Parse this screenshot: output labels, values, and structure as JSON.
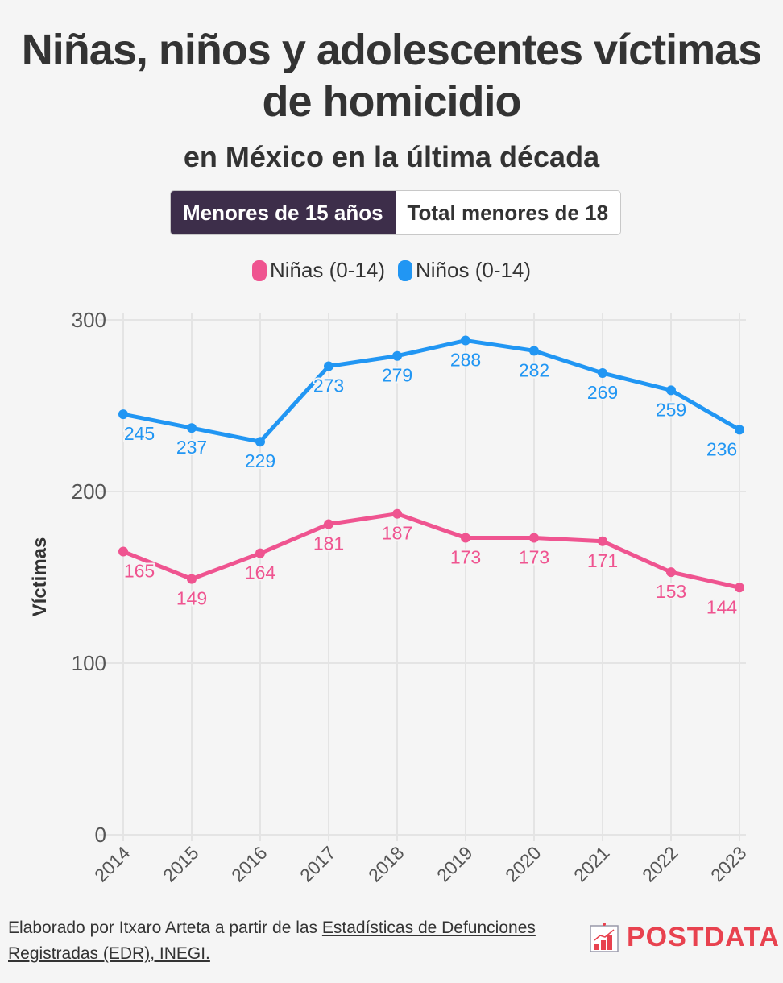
{
  "title": "Niñas, niños y adolescentes víctimas de homicidio",
  "subtitle": "en México en la última década",
  "toggle": {
    "active": "Menores de 15 años",
    "inactive": "Total menores de 18"
  },
  "footer": {
    "prefix": "Elaborado por Itxaro Arteta a partir de las ",
    "link": "Estadísticas de Defunciones Registradas (EDR), INEGI."
  },
  "logo": "POSTDATA",
  "colors": {
    "ninas": "#ef5490",
    "ninos": "#2196f3",
    "toggle_active": "#3d2e4a"
  },
  "chart_data": {
    "type": "line",
    "x": [
      "2014",
      "2015",
      "2016",
      "2017",
      "2018",
      "2019",
      "2020",
      "2021",
      "2022",
      "2023"
    ],
    "series": [
      {
        "name": "Niñas (0-14)",
        "values": [
          165,
          149,
          164,
          181,
          187,
          173,
          173,
          171,
          153,
          144
        ]
      },
      {
        "name": "Niños (0-14)",
        "values": [
          245,
          237,
          229,
          273,
          279,
          288,
          282,
          269,
          259,
          236
        ]
      }
    ],
    "ylabel": "Víctimas",
    "ylim": [
      0,
      300
    ],
    "yticks": [
      "0",
      "100",
      "200",
      "300"
    ],
    "grid": true,
    "legend": "top-center"
  }
}
